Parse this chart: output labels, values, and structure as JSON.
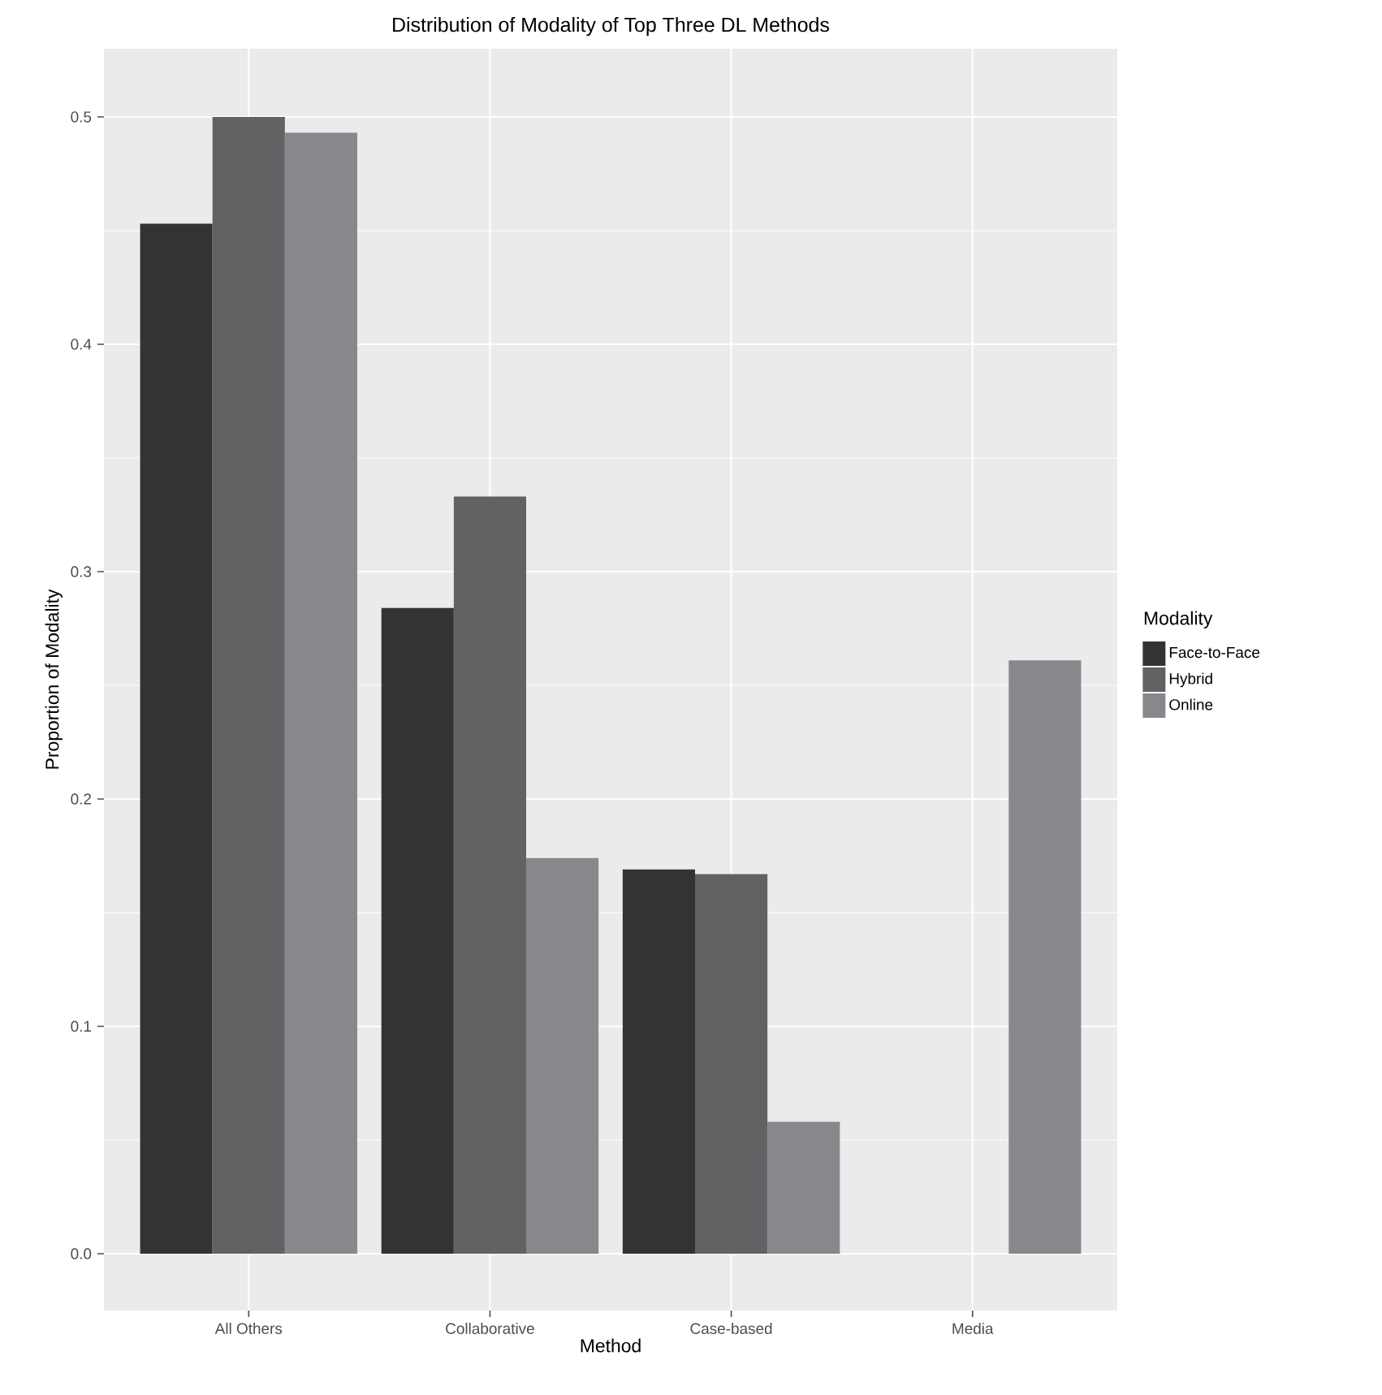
{
  "chart_data": {
    "type": "bar",
    "title": "Distribution of Modality of Top Three DL Methods",
    "xlabel": "Method",
    "ylabel": "Proportion of Modality",
    "legend_title": "Modality",
    "categories": [
      "All Others",
      "Collaborative",
      "Case-based",
      "Media"
    ],
    "series": [
      {
        "name": "Face-to-Face",
        "color": "#333333",
        "values": [
          0.453,
          0.284,
          0.169,
          null
        ]
      },
      {
        "name": "Hybrid",
        "color": "#626264",
        "values": [
          0.5,
          0.333,
          0.167,
          null
        ]
      },
      {
        "name": "Online",
        "color": "#87888c",
        "values": [
          0.493,
          0.174,
          0.058,
          0.261
        ]
      }
    ],
    "ylim": [
      -0.025,
      0.53
    ],
    "yticks": [
      {
        "value": 0,
        "label": "0.0"
      },
      0.1,
      0.2,
      0.3,
      0.4,
      0.5
    ],
    "grid": true,
    "legend": "right"
  }
}
